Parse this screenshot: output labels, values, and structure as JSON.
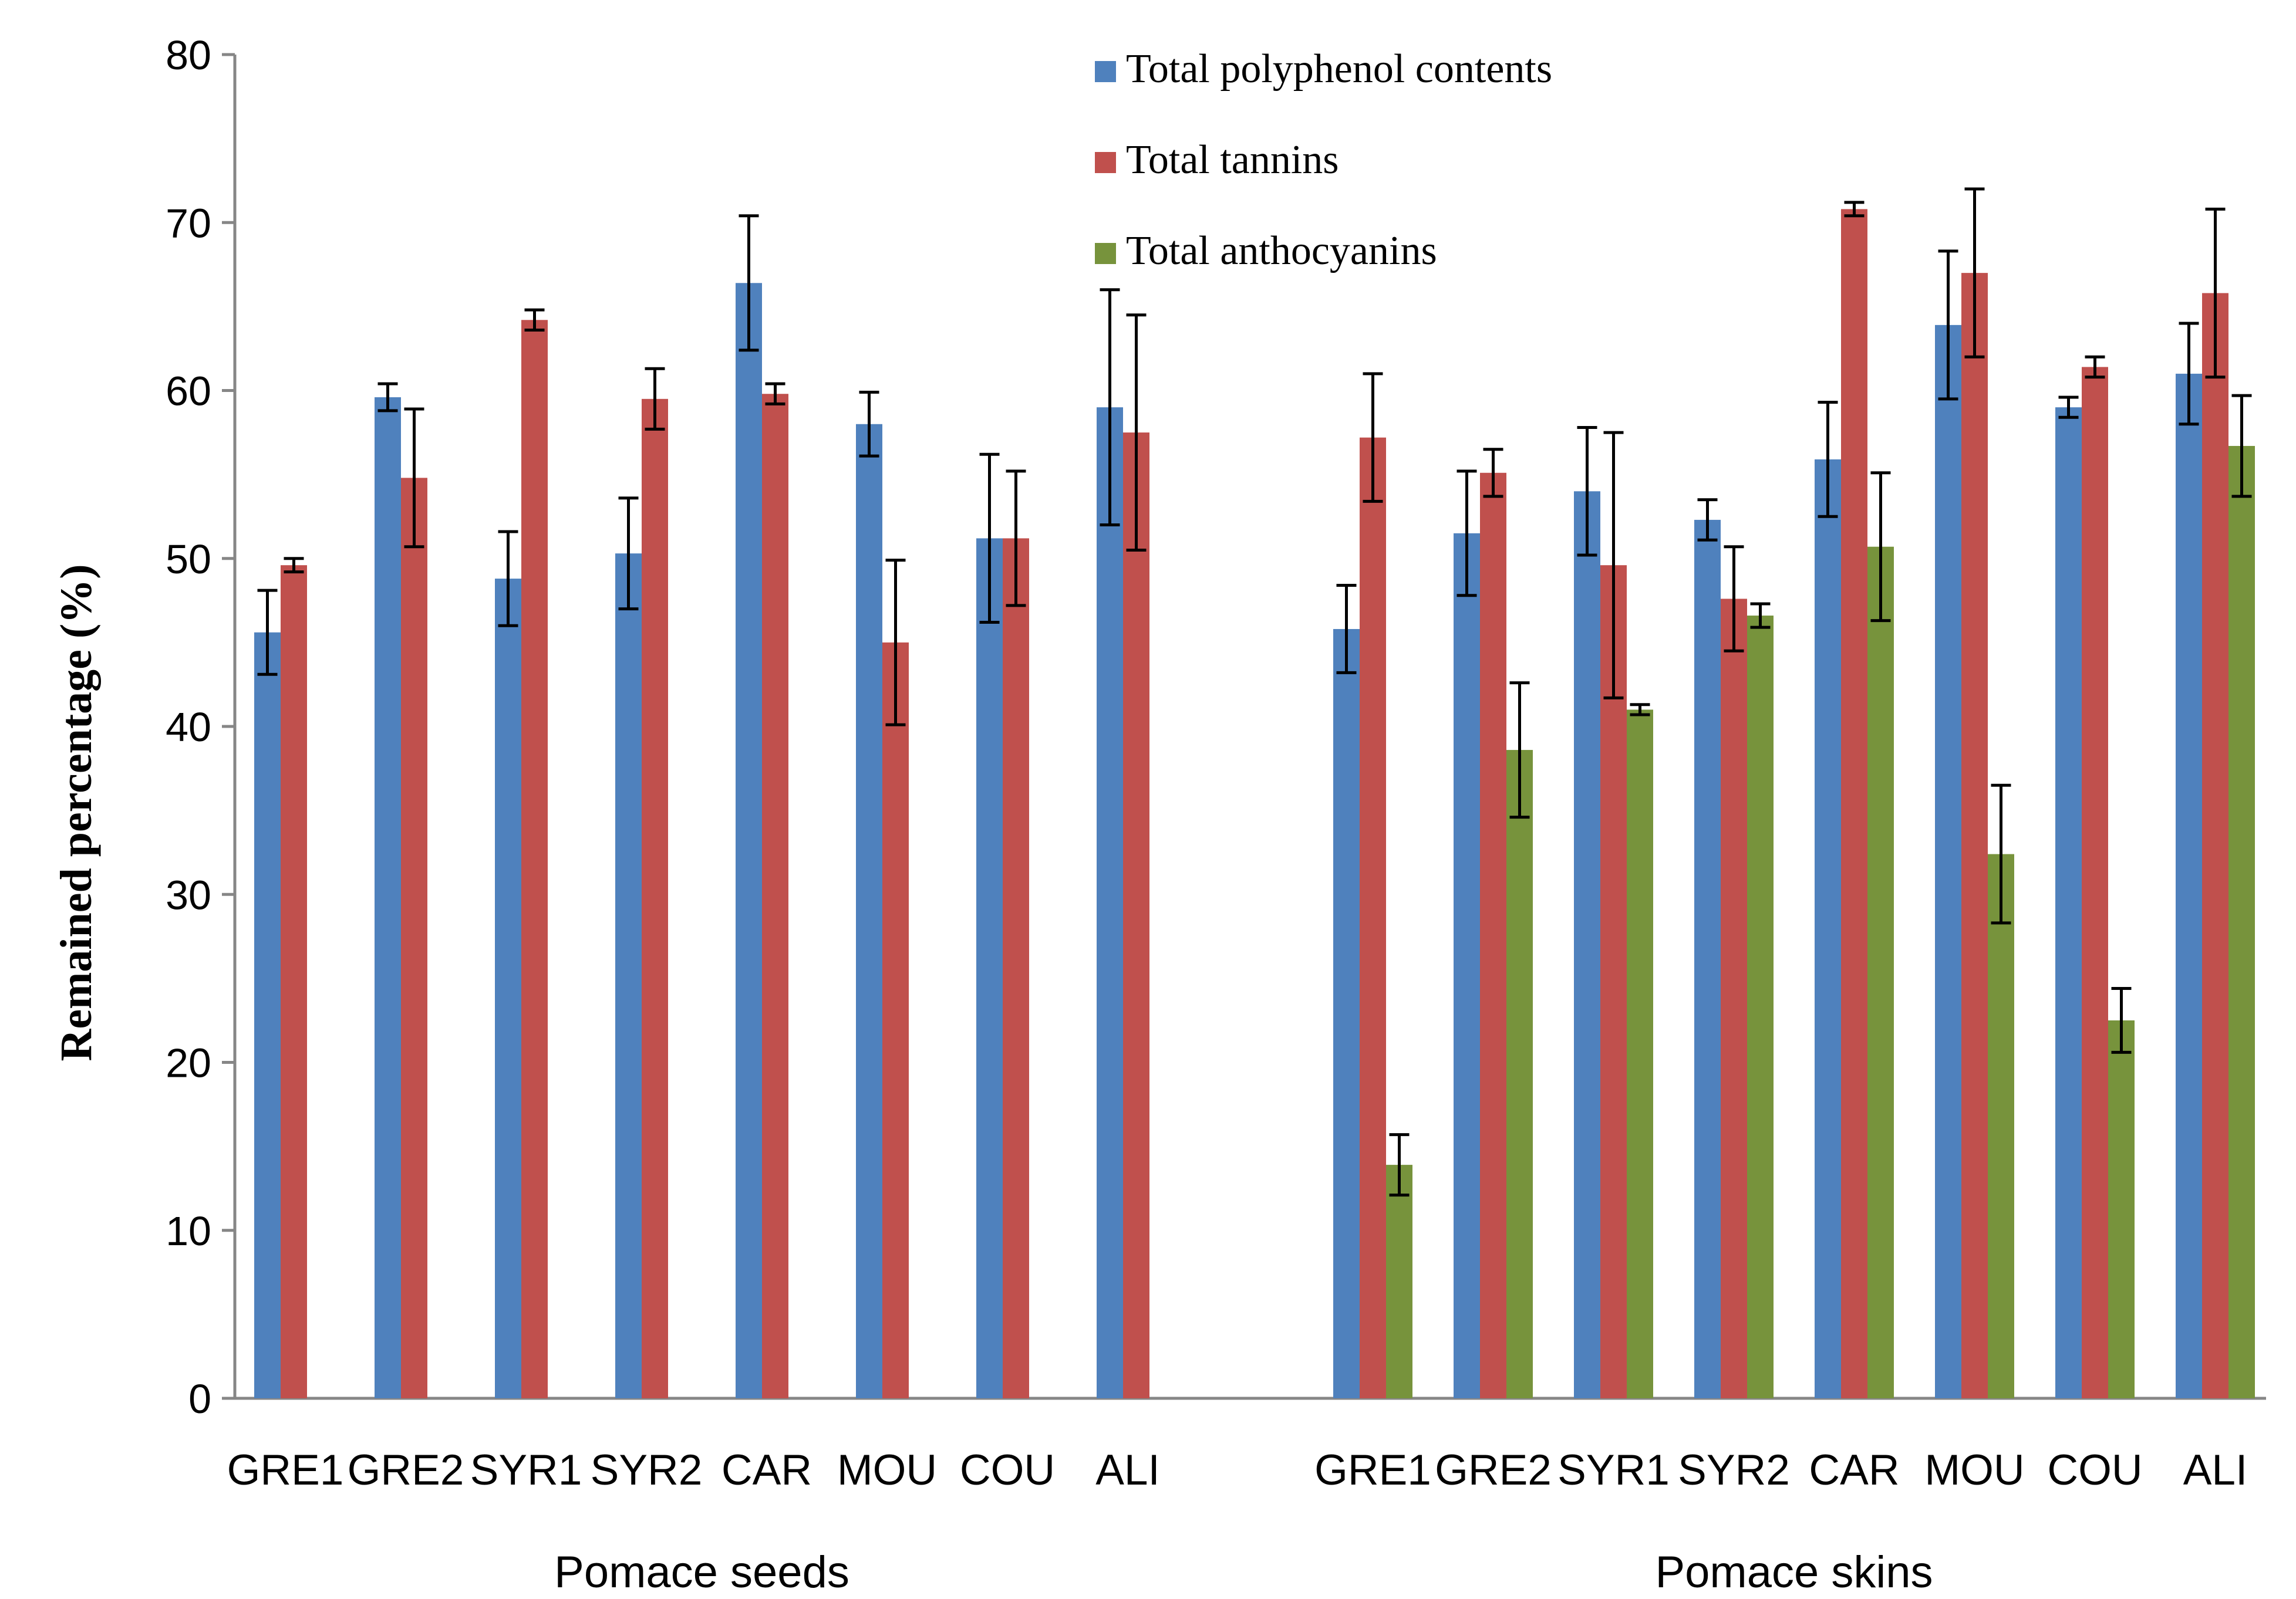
{
  "chart_data": {
    "type": "bar",
    "title": "",
    "xlabel": "",
    "ylabel": "Remained percentage (%)",
    "ylim": [
      0,
      80
    ],
    "yticks": [
      0,
      10,
      20,
      30,
      40,
      50,
      60,
      70,
      80
    ],
    "grid": false,
    "legend_position": "top-center",
    "series": [
      {
        "key": "polyphenol",
        "name": "Total polyphenol contents",
        "color": "#4F81BD"
      },
      {
        "key": "tannins",
        "name": "Total tannins",
        "color": "#C0504D"
      },
      {
        "key": "anthocyanins",
        "name": "Total anthocyanins",
        "color": "#77933C"
      }
    ],
    "groups": [
      {
        "name": "Pomace seeds",
        "categories": [
          "GRE1",
          "GRE2",
          "SYR1",
          "SYR2",
          "CAR",
          "MOU",
          "COU",
          "ALI"
        ],
        "series": [
          {
            "key": "polyphenol",
            "values": [
              45.6,
              59.6,
              48.8,
              50.3,
              66.4,
              58.0,
              51.2,
              59.0
            ],
            "errors": [
              2.5,
              0.8,
              2.8,
              3.3,
              4.0,
              1.9,
              5.0,
              7.0
            ]
          },
          {
            "key": "tannins",
            "values": [
              49.6,
              54.8,
              64.2,
              59.5,
              59.8,
              45.0,
              51.2,
              57.5
            ],
            "errors": [
              0.4,
              4.1,
              0.6,
              1.8,
              0.6,
              4.9,
              4.0,
              7.0
            ]
          }
        ]
      },
      {
        "name": "Pomace skins",
        "categories": [
          "GRE1",
          "GRE2",
          "SYR1",
          "SYR2",
          "CAR",
          "MOU",
          "COU",
          "ALI"
        ],
        "series": [
          {
            "key": "polyphenol",
            "values": [
              45.8,
              51.5,
              54.0,
              52.3,
              55.9,
              63.9,
              59.0,
              61.0
            ],
            "errors": [
              2.6,
              3.7,
              3.8,
              1.2,
              3.4,
              4.4,
              0.6,
              3.0
            ]
          },
          {
            "key": "tannins",
            "values": [
              57.2,
              55.1,
              49.6,
              47.6,
              70.8,
              67.0,
              61.4,
              65.8
            ],
            "errors": [
              3.8,
              1.4,
              7.9,
              3.1,
              0.4,
              5.0,
              0.6,
              5.0
            ]
          },
          {
            "key": "anthocyanins",
            "values": [
              13.9,
              38.6,
              41.0,
              46.6,
              50.7,
              32.4,
              22.5,
              56.7
            ],
            "errors": [
              1.8,
              4.0,
              0.3,
              0.7,
              4.4,
              4.1,
              1.9,
              3.0
            ]
          }
        ]
      }
    ]
  }
}
